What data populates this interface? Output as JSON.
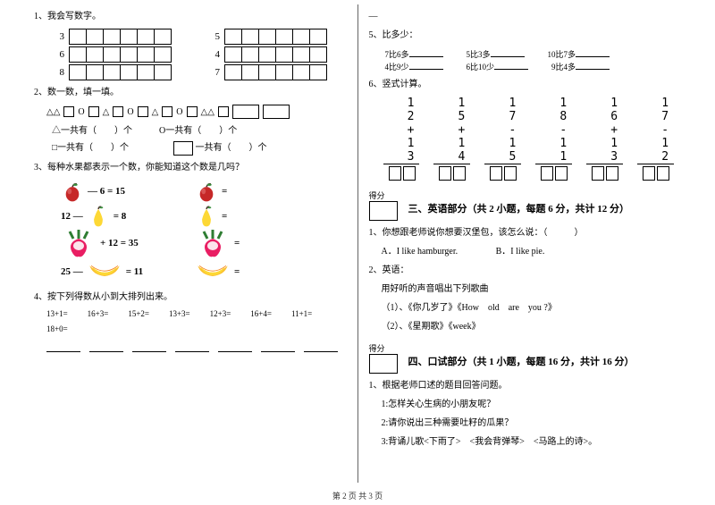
{
  "left": {
    "q1": {
      "title": "1、我会写数字。",
      "pairs": [
        [
          "3",
          "5"
        ],
        [
          "6",
          "4"
        ],
        [
          "8",
          "7"
        ]
      ]
    },
    "q2": {
      "title": "2、数一数，填一填。",
      "line1_parts": [
        "△△",
        "O",
        "△",
        "O",
        "△",
        "O",
        "△△"
      ],
      "counts": [
        {
          "a": "△一共有（",
          "b": "）个",
          "c": "O一共有（",
          "d": "）个"
        },
        {
          "a": "□一共有（",
          "b": "）个",
          "c": "",
          "d": "一共有（　　）个",
          "blankbox": true
        }
      ]
    },
    "q3": {
      "title": "3、每种水果都表示一个数，你能知道这个数是几吗？",
      "rows": [
        {
          "lhs": "— 6 = 15",
          "icon": "apple",
          "rhs": "="
        },
        {
          "lhs": "12 —",
          "icon": "pear",
          "mid": "= 8",
          "rhs": "="
        },
        {
          "lhs": "+ 12 = 35",
          "icon": "radish",
          "rhs": "=",
          "big": true
        },
        {
          "lhs": "25 —",
          "icon": "banana",
          "mid": "= 11",
          "rhs": "=",
          "big": true
        }
      ]
    },
    "q4": {
      "title": "4、按下列得数从小到大排列出来。",
      "items": [
        "13+1=",
        "16+3=",
        "15+2=",
        "13+3=",
        "12+3=",
        "16+4=",
        "11+1="
      ],
      "extra": "18+0="
    }
  },
  "right": {
    "dash": "—",
    "q5": {
      "title": "5、比多少：",
      "rows": [
        [
          "7比6多",
          "5比3多",
          "10比7多"
        ],
        [
          "4比9少",
          "6比10少",
          "9比4多"
        ]
      ]
    },
    "q6": {
      "title": "6、竖式计算。",
      "cols": [
        {
          "a": "1 2",
          "b": "+ 1 3"
        },
        {
          "a": "1 5",
          "b": "+ 1 4"
        },
        {
          "a": "1 7",
          "b": "- 1 5"
        },
        {
          "a": "1 8",
          "b": "- 1 1"
        },
        {
          "a": "1 6",
          "b": "+ 1 3"
        },
        {
          "a": "1 7",
          "b": "- 1 2"
        }
      ]
    },
    "s3": {
      "score": "得分",
      "title": "三、英语部分（共 2 小题，每题 6 分，共计 12 分）",
      "q1": {
        "t": "1、你想跟老师说你想要汉堡包，该怎么说：（　　　）",
        "a": "A．I like hamburger.",
        "b": "B．I like pie."
      },
      "q2": {
        "t": "2、英语：",
        "sub": "用好听的声音唱出下列歌曲",
        "l1": "（1）、《你几岁了》《How　old　are　you ?》",
        "l2": "（2）、《星期歌》《week》"
      }
    },
    "s4": {
      "score": "得分",
      "title": "四、口试部分（共 1 小题，每题 16 分，共计 16 分）",
      "q1": "1、根据老师口述的题目回答问题。",
      "l1": "1:怎样关心生病的小朋友呢？",
      "l2": "2:请你说出三种需要吐籽的瓜果？",
      "l3": "3:背诵儿歌<下雨了>　<我会背弹琴>　<马路上的诗>。"
    }
  },
  "footer": "第 2 页 共 3 页"
}
